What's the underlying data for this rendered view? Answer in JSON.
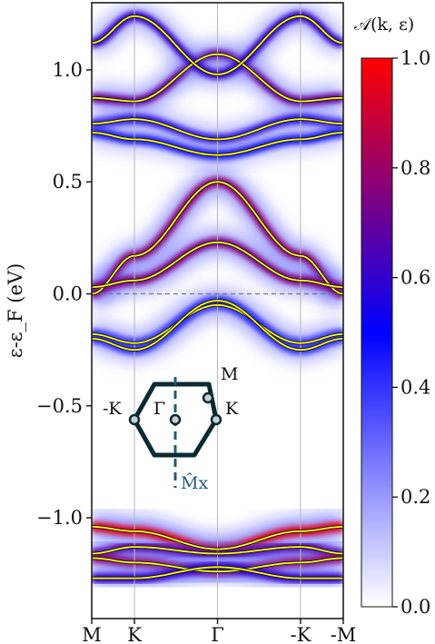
{
  "chart_data": {
    "type": "heatmap",
    "title": "",
    "ylabel": "ε-ε_F (eV)",
    "ylim": [
      -1.45,
      1.3
    ],
    "yticks": [
      {
        "value": 1.0,
        "label": "1.0"
      },
      {
        "value": 0.5,
        "label": "0.5"
      },
      {
        "value": 0.0,
        "label": "0.0"
      },
      {
        "value": -0.5,
        "label": "−0.5"
      },
      {
        "value": -1.0,
        "label": "−1.0"
      }
    ],
    "xticks": [
      {
        "value": 0.0,
        "label": "M"
      },
      {
        "value": 0.17,
        "label": "K"
      },
      {
        "value": 0.5,
        "label": "Γ"
      },
      {
        "value": 0.83,
        "label": "-K"
      },
      {
        "value": 1.0,
        "label": "-M"
      }
    ],
    "fermi_level": 0.0,
    "colorbar": {
      "title": "𝒜(k, ε)",
      "range": [
        0.0,
        1.0
      ],
      "ticks": [
        "0.0",
        "0.2",
        "0.4",
        "0.6",
        "0.8",
        "1.0"
      ],
      "colors": [
        "#ffffff",
        "#0000ff",
        "#ff0000"
      ]
    },
    "bands": [
      {
        "edge": 0.0,
        "k": 0.17,
        "g": 0.5,
        "amp": 0.78
      },
      {
        "edge": 0.875,
        "k": 0.86,
        "g": 1.07,
        "amp": 0.7
      },
      {
        "edge": 1.12,
        "k": 1.24,
        "g": 0.98,
        "amp": 0.6
      },
      {
        "edge": 0.76,
        "k": 0.78,
        "g": 0.69,
        "amp": 0.55
      },
      {
        "edge": 0.72,
        "k": 0.69,
        "g": 0.62,
        "amp": 0.45
      },
      {
        "edge": 0.03,
        "k": 0.06,
        "g": 0.23,
        "amp": 0.75
      },
      {
        "edge": -0.18,
        "k": -0.22,
        "g": -0.05,
        "amp": 0.5
      },
      {
        "edge": -0.2,
        "k": -0.25,
        "g": -0.03,
        "amp": 0.4
      },
      {
        "edge": -1.04,
        "k": -1.06,
        "g": -1.14,
        "amp": 0.95
      },
      {
        "edge": -1.16,
        "k": -1.13,
        "g": -1.16,
        "amp": 0.7
      },
      {
        "edge": -1.18,
        "k": -1.2,
        "g": -1.24,
        "amp": 0.8
      },
      {
        "edge": -1.27,
        "k": -1.27,
        "g": -1.22,
        "amp": 0.6
      }
    ],
    "inset": {
      "labels": {
        "M": "M",
        "K": "K",
        "minus_K": "-K",
        "Gamma": "Γ",
        "mirror": "M̂x"
      }
    }
  }
}
